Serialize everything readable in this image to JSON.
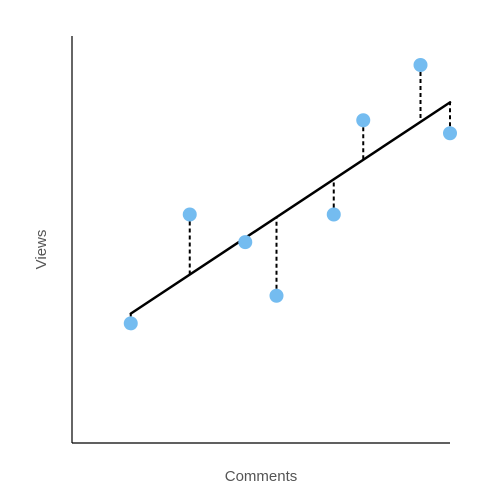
{
  "chart_data": {
    "type": "scatter",
    "title": "",
    "xlabel": "Comments",
    "ylabel": "Views",
    "xlim": [
      0,
      1
    ],
    "ylim": [
      0,
      1
    ],
    "grid": false,
    "legend": "none",
    "tick_labels": false,
    "point_color": "#74bcf0",
    "line_color": "#000000",
    "residual_color": "#000000",
    "points": [
      {
        "x": 0.08,
        "y": 0.165
      },
      {
        "x": 0.25,
        "y": 0.5
      },
      {
        "x": 0.41,
        "y": 0.415
      },
      {
        "x": 0.5,
        "y": 0.25
      },
      {
        "x": 0.665,
        "y": 0.5
      },
      {
        "x": 0.75,
        "y": 0.79
      },
      {
        "x": 0.915,
        "y": 0.96
      },
      {
        "x": 1.0,
        "y": 0.75
      }
    ],
    "regression_line": {
      "x_start": 0.08,
      "y_start": 0.195,
      "x_end": 1.0,
      "y_end": 0.845
    }
  }
}
